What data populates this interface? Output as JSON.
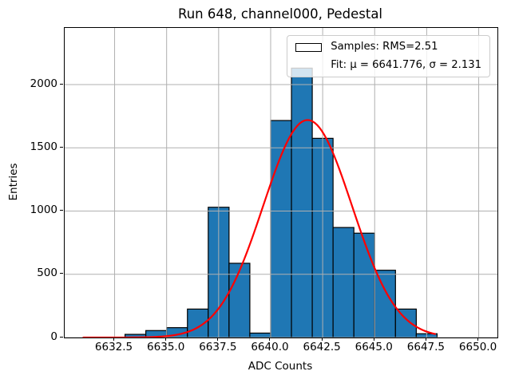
{
  "chart_data": {
    "type": "bar",
    "subtype": "histogram",
    "title": "Run 648, channel000, Pedestal",
    "xlabel": "ADC Counts",
    "ylabel": "Entries",
    "bin_edges": [
      6633,
      6634,
      6635,
      6636,
      6637,
      6638,
      6639,
      6640,
      6641,
      6642,
      6643,
      6644,
      6645,
      6646,
      6647,
      6648
    ],
    "counts": [
      25,
      55,
      78,
      225,
      1030,
      587,
      35,
      1716,
      2130,
      1575,
      870,
      825,
      532,
      225,
      30
    ],
    "xlim": [
      6630.1,
      6650.9
    ],
    "ylim": [
      0,
      2448
    ],
    "xticks": {
      "values": [
        6632.5,
        6635.0,
        6637.5,
        6640.0,
        6642.5,
        6645.0,
        6647.5,
        6650.0
      ],
      "labels": [
        "6632.5",
        "6635.0",
        "6637.5",
        "6640.0",
        "6642.5",
        "6645.0",
        "6647.5",
        "6650.0"
      ]
    },
    "yticks": {
      "values": [
        0,
        500,
        1000,
        1500,
        2000
      ],
      "labels": [
        "0",
        "500",
        "1000",
        "1500",
        "2000"
      ]
    },
    "grid": true,
    "legend": {
      "position": "upper-right",
      "entries": [
        {
          "label": "Samples: RMS=2.51",
          "marker": "patch"
        },
        {
          "label": "Fit: μ = 6641.776, σ = 2.131",
          "marker": "line"
        }
      ]
    },
    "fit_curve": {
      "mu": 6641.776,
      "sigma": 2.131,
      "peak": 1720,
      "x_start": 6631.0,
      "x_end": 6647.9
    },
    "colors": {
      "bar_fill": "#1f77b4",
      "bar_edge": "#000000",
      "fit_line": "#ff0000",
      "grid": "#b0b0b0",
      "spine": "#000000"
    }
  }
}
